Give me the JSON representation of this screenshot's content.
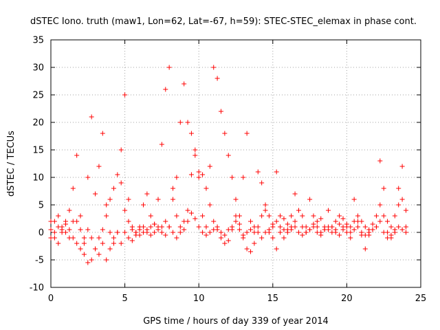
{
  "chart_data": {
    "type": "scatter",
    "title": "dSTEC Iono. truth (maw1, Lon=62, Lat=-67, h=59): STEC-STEC_elemax in phase cont.",
    "xlabel": "GPS time / hours of day 339 of year 2014",
    "ylabel": "dSTEC  / TECUs",
    "xlim": [
      0,
      25
    ],
    "ylim": [
      -10,
      35
    ],
    "xticks": [
      0,
      5,
      10,
      15,
      20,
      25
    ],
    "yticks": [
      -10,
      -5,
      0,
      5,
      10,
      15,
      20,
      25,
      30,
      35
    ],
    "grid": true,
    "marker": "plus",
    "color": "#ff0000",
    "series": [
      {
        "x": [
          0.0,
          0.25,
          0.5,
          0.75,
          1.0,
          1.25,
          1.5,
          1.75,
          2.0,
          2.25,
          2.5,
          2.75,
          3.0,
          3.25,
          3.5,
          3.75,
          4.0,
          4.25,
          4.5,
          4.75,
          5.0,
          5.25,
          5.5,
          5.75,
          6.0,
          6.25,
          6.5,
          6.75,
          7.0,
          7.25,
          7.5,
          7.75,
          8.0,
          8.25,
          8.5,
          8.75,
          9.0,
          9.25,
          9.5,
          9.75,
          10.0,
          10.25,
          10.5,
          10.75,
          11.0,
          11.25,
          11.5,
          11.75,
          12.0,
          12.25,
          12.5,
          12.75,
          13.0,
          13.25,
          13.5,
          13.75,
          14.0,
          14.25,
          14.5,
          14.75,
          15.0,
          15.25,
          15.5,
          15.75,
          16.0,
          16.25,
          16.5,
          16.75,
          17.0,
          17.25,
          17.5,
          17.75,
          18.0,
          18.25,
          18.5,
          18.75,
          19.0,
          19.25,
          19.5,
          19.75,
          20.0,
          20.25,
          20.5,
          20.75,
          21.0,
          21.25,
          21.5,
          21.75,
          22.0,
          22.25,
          22.5,
          22.75,
          23.0,
          23.25,
          23.5,
          23.75,
          24.0
        ],
        "y": [
          0.5,
          2.0,
          3.0,
          1.0,
          1.5,
          4.0,
          8.0,
          2.0,
          0.5,
          -4.0,
          -5.5,
          -5.0,
          -3.0,
          -1.0,
          0.5,
          3.0,
          6.0,
          8.0,
          10.5,
          9.0,
          4.0,
          2.0,
          0.5,
          -0.5,
          1.0,
          5.0,
          7.0,
          3.0,
          1.5,
          6.0,
          16.0,
          26.0,
          30.0,
          8.0,
          3.0,
          1.0,
          2.0,
          4.0,
          10.5,
          14.0,
          11.0,
          10.5,
          8.0,
          5.0,
          2.0,
          0.5,
          -1.0,
          -2.0,
          -1.5,
          0.5,
          3.0,
          1.5,
          -1.0,
          -3.0,
          -3.5,
          -2.0,
          1.0,
          3.0,
          5.0,
          3.0,
          1.5,
          2.0,
          1.0,
          2.5,
          1.5,
          3.0,
          2.0,
          4.0,
          3.0,
          1.0,
          0.5,
          1.5,
          2.0,
          2.5,
          1.0,
          0.5,
          1.0,
          2.0,
          3.0,
          2.5,
          1.5,
          1.0,
          2.0,
          3.0,
          2.0,
          1.0,
          0.5,
          1.5,
          3.0,
          5.0,
          8.0,
          2.0,
          1.0,
          3.0,
          5.0,
          6.0,
          4.0
        ]
      },
      {
        "x": [
          0.0,
          0.25,
          0.5,
          0.75,
          1.0,
          1.25,
          1.5,
          1.75,
          2.0,
          2.25,
          2.5,
          2.75,
          3.0,
          3.25,
          3.5,
          3.75,
          4.0,
          4.25,
          4.5,
          4.75,
          5.0,
          5.25,
          5.5,
          5.75,
          6.0,
          6.25,
          6.5,
          6.75,
          7.0,
          7.25,
          7.5,
          7.75,
          8.0,
          8.25,
          8.5,
          8.75,
          9.0,
          9.25,
          9.5,
          9.75,
          10.0,
          10.25,
          10.5,
          10.75,
          11.0,
          11.25,
          11.5,
          11.75,
          12.0,
          12.25,
          12.5,
          12.75,
          13.0,
          13.25,
          13.5,
          13.75,
          14.0,
          14.25,
          14.5,
          14.75,
          15.0,
          15.25,
          15.5,
          15.75,
          16.0,
          16.25,
          16.5,
          16.75,
          17.0,
          17.25,
          17.5,
          17.75,
          18.0,
          18.25,
          18.5,
          18.75,
          19.0,
          19.25,
          19.5,
          19.75,
          20.0,
          20.25,
          20.5,
          20.75,
          21.0,
          21.25,
          21.5,
          21.75,
          22.0,
          22.25,
          22.5,
          22.75,
          23.0,
          23.25,
          23.5,
          23.75,
          24.0
        ],
        "y": [
          -1.0,
          0.0,
          1.0,
          0.5,
          0.0,
          -1.0,
          2.0,
          14.0,
          3.0,
          -2.0,
          10.0,
          21.0,
          7.0,
          12.0,
          18.0,
          5.0,
          0.0,
          -2.0,
          0.0,
          15.0,
          25.0,
          6.0,
          1.0,
          0.0,
          -0.5,
          0.0,
          0.5,
          1.0,
          1.5,
          1.0,
          0.0,
          -0.5,
          1.0,
          6.0,
          10.0,
          20.0,
          27.0,
          20.0,
          18.0,
          15.0,
          10.0,
          3.0,
          1.0,
          12.0,
          30.0,
          28.0,
          22.0,
          18.0,
          14.0,
          10.0,
          6.0,
          3.0,
          10.0,
          18.0,
          2.0,
          0.0,
          11.0,
          9.0,
          4.0,
          0.0,
          1.0,
          11.0,
          3.0,
          -1.0,
          0.5,
          1.0,
          7.0,
          4.0,
          1.0,
          0.0,
          6.0,
          3.0,
          1.0,
          0.0,
          0.5,
          4.0,
          1.0,
          0.0,
          -0.5,
          0.5,
          1.0,
          0.0,
          6.0,
          2.0,
          -0.5,
          -3.0,
          -0.5,
          0.5,
          1.0,
          13.0,
          3.0,
          0.0,
          -1.0,
          0.5,
          8.0,
          12.0,
          0.0
        ]
      },
      {
        "x": [
          0.0,
          0.25,
          0.5,
          0.75,
          1.0,
          1.25,
          1.5,
          1.75,
          2.0,
          2.25,
          2.5,
          2.75,
          3.0,
          3.25,
          3.5,
          3.75,
          4.0,
          4.25,
          4.5,
          4.75,
          5.0,
          5.25,
          5.5,
          5.75,
          6.0,
          6.25,
          6.5,
          6.75,
          7.0,
          7.25,
          7.5,
          7.75,
          8.0,
          8.25,
          8.5,
          8.75,
          9.0,
          9.25,
          9.5,
          9.75,
          10.0,
          10.25,
          10.5,
          10.75,
          11.0,
          11.25,
          11.5,
          11.75,
          12.0,
          12.25,
          12.5,
          12.75,
          13.0,
          13.25,
          13.5,
          13.75,
          14.0,
          14.25,
          14.5,
          14.75,
          15.0,
          15.25,
          15.5,
          15.75,
          16.0,
          16.25,
          16.5,
          16.75,
          17.0,
          17.25,
          17.5,
          17.75,
          18.0,
          18.25,
          18.5,
          18.75,
          19.0,
          19.25,
          19.5,
          19.75,
          20.0,
          20.25,
          20.5,
          20.75,
          21.0,
          21.25,
          21.5,
          21.75,
          22.0,
          22.25,
          22.5,
          22.75,
          23.0,
          23.25,
          23.5,
          23.75,
          24.0
        ],
        "y": [
          2.0,
          -1.0,
          -2.0,
          0.0,
          2.0,
          0.5,
          -1.0,
          -2.0,
          -3.0,
          -1.0,
          0.5,
          -1.0,
          -3.0,
          -4.0,
          -2.0,
          -5.0,
          -3.0,
          -1.0,
          0.0,
          -2.0,
          0.0,
          -1.0,
          -1.5,
          0.0,
          0.5,
          1.0,
          0.0,
          -0.5,
          0.0,
          0.5,
          1.0,
          2.0,
          1.0,
          0.0,
          -1.0,
          0.0,
          0.5,
          2.0,
          3.5,
          2.5,
          1.0,
          0.0,
          -0.5,
          0.0,
          0.5,
          1.0,
          0.0,
          -0.5,
          0.5,
          1.0,
          2.0,
          0.5,
          -0.5,
          0.0,
          0.5,
          1.0,
          0.0,
          -1.0,
          0.0,
          0.5,
          -1.0,
          -3.0,
          0.0,
          0.5,
          0.0,
          0.5,
          1.0,
          0.0,
          -0.5,
          0.0,
          0.5,
          1.0,
          0.0,
          -0.5,
          0.5,
          1.0,
          0.0,
          0.5,
          1.5,
          1.0,
          0.0,
          -1.0,
          0.5,
          1.0,
          0.0,
          -0.5,
          0.0,
          0.5,
          1.0,
          2.0,
          0.0,
          -1.0,
          -0.5,
          0.0,
          1.0,
          0.5,
          1.0
        ]
      }
    ]
  }
}
